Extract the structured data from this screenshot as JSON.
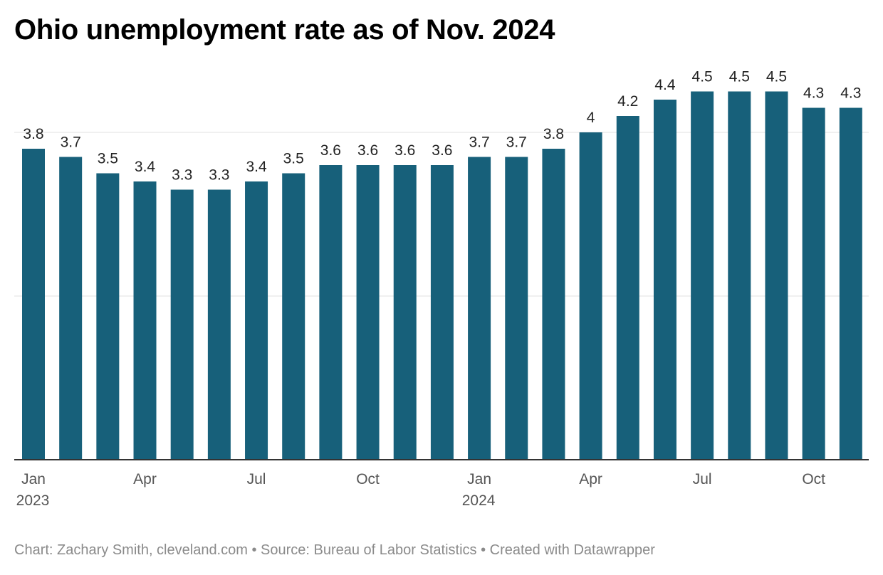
{
  "chart_data": {
    "type": "bar",
    "title": "Ohio unemployment rate as of Nov. 2024",
    "categories": [
      "Jan 2023",
      "Feb 2023",
      "Mar 2023",
      "Apr 2023",
      "May 2023",
      "Jun 2023",
      "Jul 2023",
      "Aug 2023",
      "Sep 2023",
      "Oct 2023",
      "Nov 2023",
      "Dec 2023",
      "Jan 2024",
      "Feb 2024",
      "Mar 2024",
      "Apr 2024",
      "May 2024",
      "Jun 2024",
      "Jul 2024",
      "Aug 2024",
      "Sep 2024",
      "Oct 2024",
      "Nov 2024"
    ],
    "values": [
      3.8,
      3.7,
      3.5,
      3.4,
      3.3,
      3.3,
      3.4,
      3.5,
      3.6,
      3.6,
      3.6,
      3.6,
      3.7,
      3.7,
      3.8,
      4,
      4.2,
      4.4,
      4.5,
      4.5,
      4.5,
      4.3,
      4.3
    ],
    "value_labels": [
      "3.8",
      "3.7",
      "3.5",
      "3.4",
      "3.3",
      "3.3",
      "3.4",
      "3.5",
      "3.6",
      "3.6",
      "3.6",
      "3.6",
      "3.7",
      "3.7",
      "3.8",
      "4",
      "4.2",
      "4.4",
      "4.5",
      "4.5",
      "4.5",
      "4.3",
      "4.3"
    ],
    "x_ticks": [
      {
        "index": 0,
        "line1": "Jan",
        "line2": "2023"
      },
      {
        "index": 3,
        "line1": "Apr",
        "line2": ""
      },
      {
        "index": 6,
        "line1": "Jul",
        "line2": ""
      },
      {
        "index": 9,
        "line1": "Oct",
        "line2": ""
      },
      {
        "index": 12,
        "line1": "Jan",
        "line2": "2024"
      },
      {
        "index": 15,
        "line1": "Apr",
        "line2": ""
      },
      {
        "index": 18,
        "line1": "Jul",
        "line2": ""
      },
      {
        "index": 21,
        "line1": "Oct",
        "line2": ""
      }
    ],
    "ylim": [
      0,
      4.0
    ],
    "gridlines": [
      2,
      4
    ],
    "grid": true,
    "bar_color": "#17607a",
    "xlabel": "",
    "ylabel": ""
  },
  "footer": "Chart: Zachary Smith, cleveland.com • Source: Bureau of Labor Statistics • Created with Datawrapper"
}
